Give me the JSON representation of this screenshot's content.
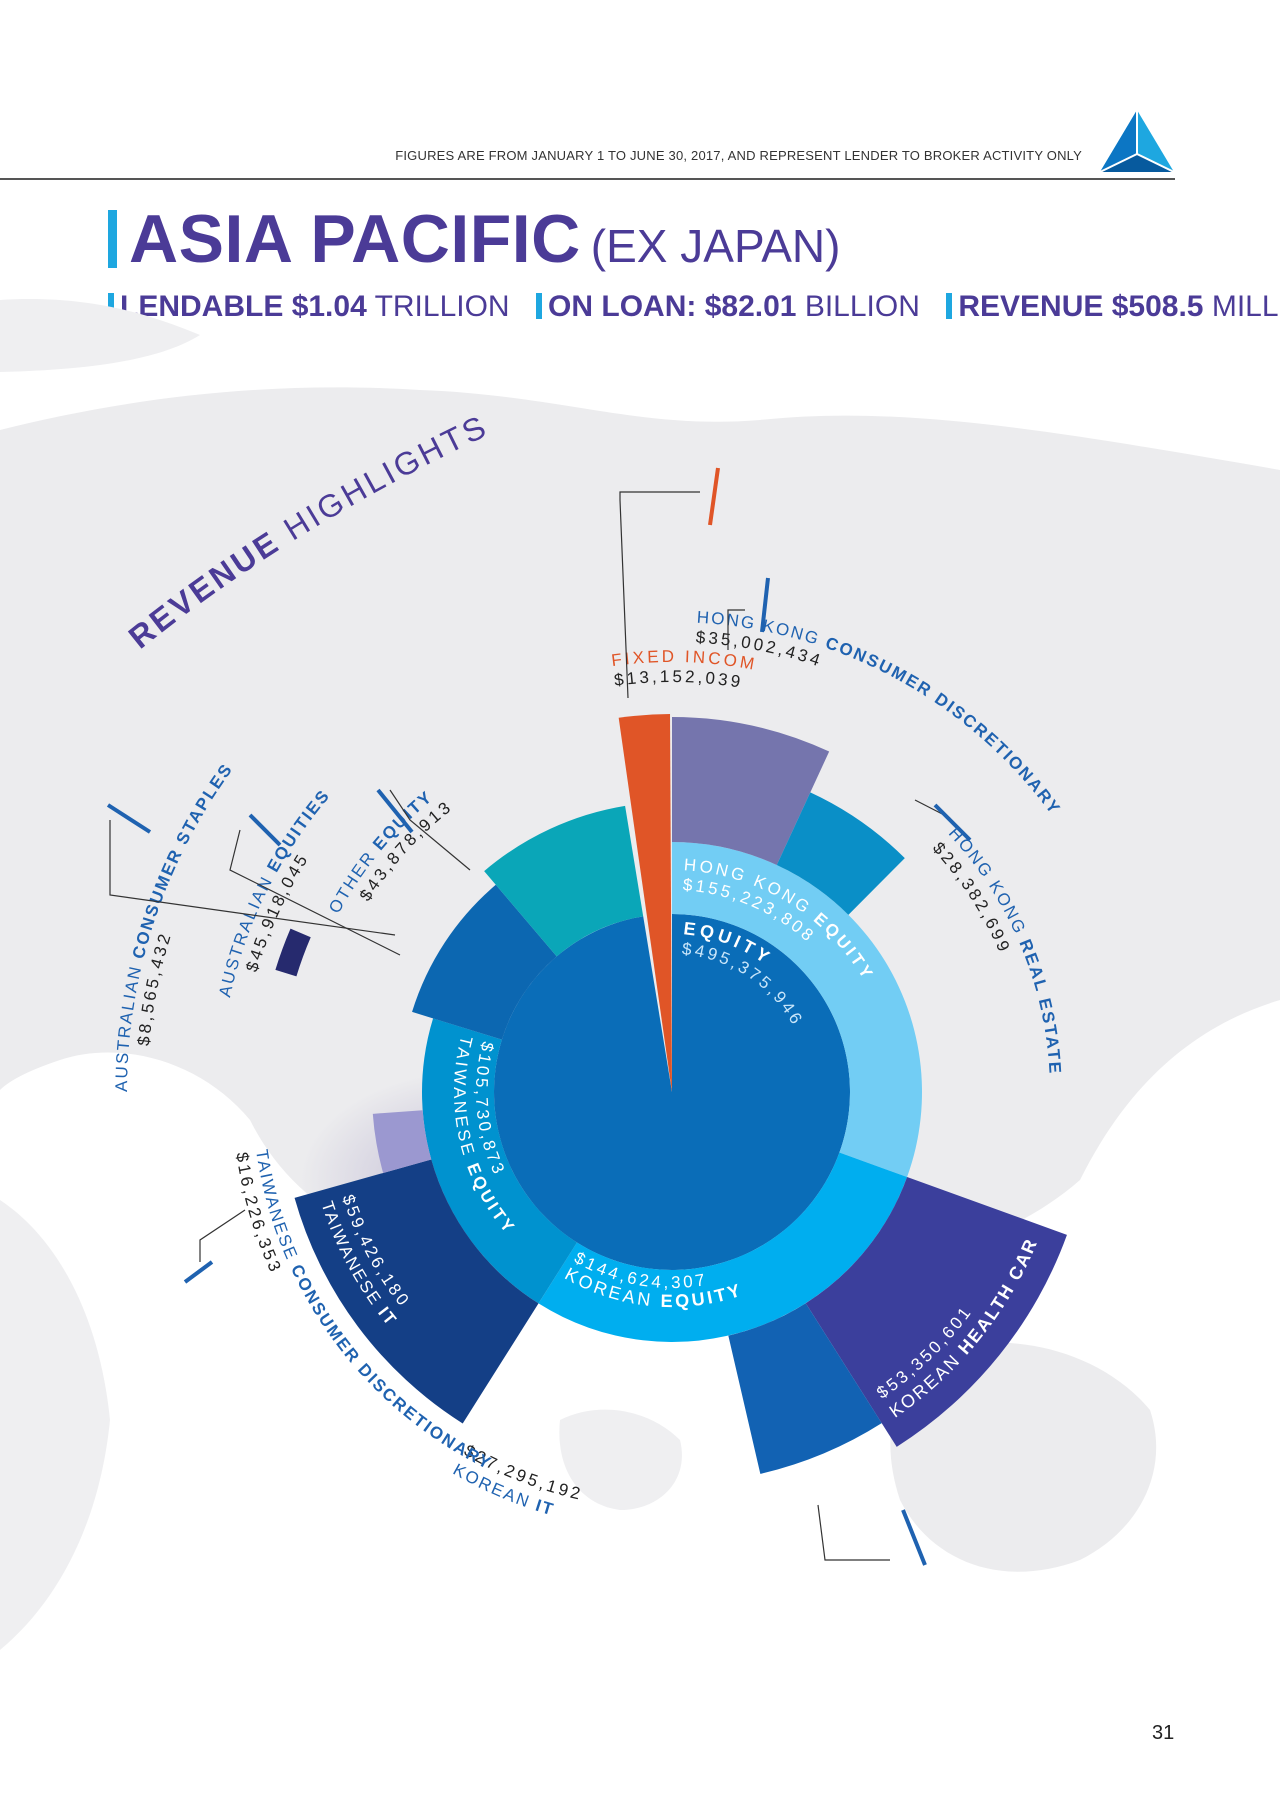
{
  "header": {
    "note": "FIGURES ARE FROM JANUARY 1 TO JUNE 30, 2017, AND REPRESENT LENDER TO BROKER ACTIVITY ONLY",
    "title": "ASIA PACIFIC",
    "title_suffix": "(EX JAPAN)"
  },
  "metrics": [
    {
      "label": "LENDABLE",
      "value": "$1.04",
      "unit": "TRILLION"
    },
    {
      "label": "ON LOAN:",
      "value": "$82.01",
      "unit": "BILLION"
    },
    {
      "label": "REVENUE",
      "value": "$508.5",
      "unit": "MILLION"
    }
  ],
  "page_number": "31",
  "colors": {
    "accent_blue": "#1ea7e0",
    "title_purple": "#4b3b97",
    "fixed_income": "#e05527",
    "equity_core": "#0a6db8"
  },
  "chart_data": {
    "type": "sunburst",
    "title": "REVENUE HIGHLIGHTS",
    "title_parts": [
      "REVENUE",
      "HIGHLIGHTS"
    ],
    "inner": [
      {
        "name": "EQUITY",
        "name_parts": [
          "EQUITY"
        ],
        "value": 495375946,
        "label": "$495,375,946",
        "color": "#0a6db8"
      },
      {
        "name": "FIXED INCOME",
        "name_parts": [
          "FIXED INCOME"
        ],
        "value": 13152039,
        "label": "$13,152,039",
        "color": "#e05527"
      }
    ],
    "middle": [
      {
        "name": "HONG KONG EQUITY",
        "name_parts": [
          "HONG KONG",
          "EQUITY"
        ],
        "value": 155223808,
        "label": "$155,223,808",
        "color": "#72cdf4"
      },
      {
        "name": "KOREAN EQUITY",
        "name_parts": [
          "KOREAN",
          "EQUITY"
        ],
        "value": 144624307,
        "label": "$144,624,307",
        "color": "#00aeef"
      },
      {
        "name": "TAIWANESE EQUITY",
        "name_parts": [
          "TAIWANESE",
          "EQUITY"
        ],
        "value": 105730873,
        "label": "$105,730,873",
        "color": "#0092cf"
      },
      {
        "name": "AUSTRALIAN EQUITIES",
        "name_parts": [
          "AUSTRALIAN",
          "EQUITIES"
        ],
        "value": 45918045,
        "label": "$45,918,045",
        "color": "#0c67b1"
      },
      {
        "name": "OTHER EQUITY",
        "name_parts": [
          "OTHER",
          "EQUITY"
        ],
        "value": 43878913,
        "label": "$43,878,913",
        "color": "#0aa6b8"
      }
    ],
    "outer": [
      {
        "name": "HONG KONG CONSUMER DISCRETIONARY",
        "name_parts": [
          "HONG KONG",
          "CONSUMER DISCRETIONARY"
        ],
        "value": 35002434,
        "label": "$35,002,434",
        "color": "#7575ad"
      },
      {
        "name": "HONG KONG REAL ESTATE",
        "name_parts": [
          "HONG KONG",
          "REAL ESTATE"
        ],
        "value": 28382699,
        "label": "$28,382,699",
        "color": "#0a8fc7"
      },
      {
        "name": "KOREAN HEALTH CARE",
        "name_parts": [
          "KOREAN",
          "HEALTH CARE"
        ],
        "value": 53350601,
        "label": "$53,350,601",
        "color": "#3b3f9c"
      },
      {
        "name": "KOREAN IT",
        "name_parts": [
          "KOREAN",
          "IT"
        ],
        "value": 27295192,
        "label": "$27,295,192",
        "color": "#1262b3"
      },
      {
        "name": "TAIWANESE IT",
        "name_parts": [
          "TAIWANESE",
          "IT"
        ],
        "value": 59426180,
        "label": "$59,426,180",
        "color": "#143f86"
      },
      {
        "name": "TAIWANESE CONSUMER DISCRETIONARY",
        "name_parts": [
          "TAIWANESE",
          "CONSUMER DISCRETIONARY"
        ],
        "value": 16226353,
        "label": "$16,226,353",
        "color": "#9b98d0"
      },
      {
        "name": "AUSTRALIAN CONSUMER STAPLES",
        "name_parts": [
          "AUSTRALIAN",
          "CONSUMER STAPLES"
        ],
        "value": 8565432,
        "label": "$8,565,432",
        "color": "#262a6e"
      }
    ]
  }
}
